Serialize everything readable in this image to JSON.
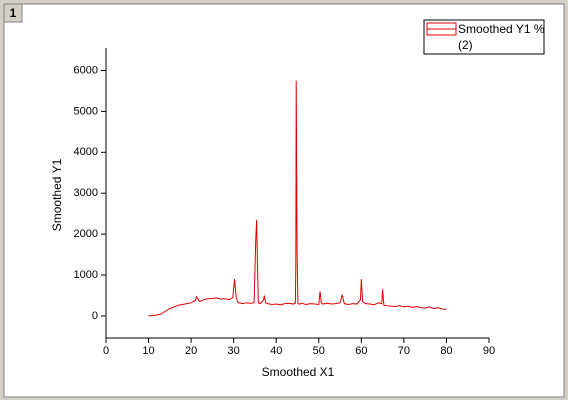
{
  "window": {
    "title": "1"
  },
  "chart_data": {
    "type": "line",
    "x_label": "Smoothed X1",
    "y_label": "Smoothed Y1",
    "xlim": [
      0,
      90
    ],
    "xticks": [
      0,
      10,
      20,
      30,
      40,
      50,
      60,
      70,
      80,
      90
    ],
    "ylim": [
      -540,
      6550
    ],
    "yticks": [
      0,
      1000,
      2000,
      3000,
      4000,
      5000,
      6000
    ],
    "grid": false,
    "legend": "top-right",
    "x": [
      10,
      11,
      12,
      13,
      14,
      15,
      16,
      17,
      18,
      19,
      20,
      21,
      21.3,
      22,
      23,
      24,
      25,
      26,
      27,
      28,
      29,
      29.8,
      30.2,
      30.6,
      31,
      32,
      33,
      34,
      34.8,
      35.2,
      35.4,
      35.6,
      35.8,
      36.2,
      37,
      37.2,
      37.5,
      38,
      39,
      40,
      41,
      42,
      43,
      44,
      44.5,
      44.6,
      44.7,
      44.8,
      44.9,
      45.1,
      45.5,
      46,
      47,
      48,
      49,
      50,
      50.3,
      50.6,
      51,
      52,
      53,
      54,
      55,
      55.5,
      56,
      57,
      58,
      59,
      59.8,
      60,
      60.3,
      61,
      62,
      63,
      64,
      64.8,
      65,
      65.3,
      66,
      67,
      68,
      69,
      70,
      71,
      72,
      73,
      74,
      75,
      76,
      77,
      78,
      79,
      80
    ],
    "series": [
      {
        "name": "Smoothed Y1 % (2)",
        "color": "#e00000",
        "values": [
          0,
          10,
          20,
          50,
          120,
          180,
          220,
          260,
          280,
          300,
          320,
          380,
          470,
          350,
          400,
          420,
          430,
          440,
          410,
          420,
          400,
          450,
          900,
          450,
          330,
          300,
          320,
          310,
          320,
          1900,
          2350,
          1200,
          320,
          300,
          380,
          500,
          320,
          300,
          280,
          290,
          270,
          300,
          310,
          290,
          310,
          1200,
          5750,
          3650,
          1600,
          300,
          290,
          310,
          280,
          300,
          290,
          280,
          600,
          320,
          290,
          310,
          290,
          300,
          320,
          520,
          300,
          280,
          300,
          290,
          400,
          900,
          350,
          300,
          290,
          270,
          320,
          300,
          650,
          260,
          250,
          240,
          230,
          250,
          220,
          240,
          210,
          230,
          200,
          190,
          220,
          180,
          200,
          170,
          160
        ]
      }
    ]
  }
}
